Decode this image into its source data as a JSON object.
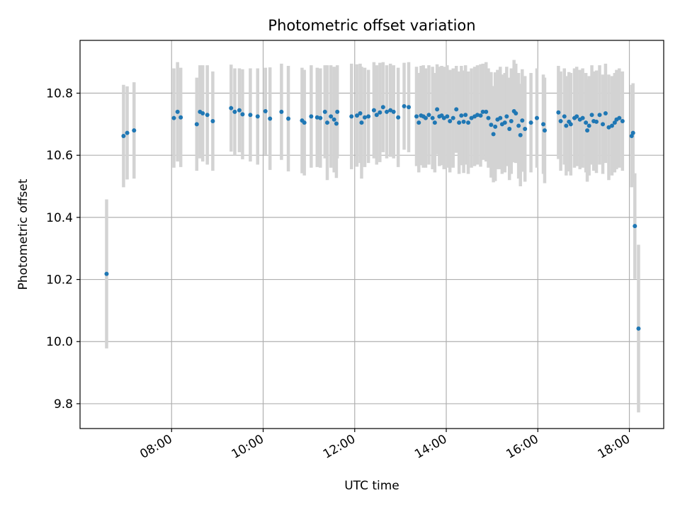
{
  "chart_data": {
    "type": "scatter",
    "title": "Photometric offset variation",
    "xlabel": "UTC time",
    "ylabel": "Photometric offset",
    "x_unit": "hour",
    "xlim": [
      6.0,
      18.75
    ],
    "ylim": [
      9.72,
      10.97
    ],
    "grid": true,
    "x_ticks": [
      {
        "value": 8,
        "label": "08:00"
      },
      {
        "value": 10,
        "label": "10:00"
      },
      {
        "value": 12,
        "label": "12:00"
      },
      {
        "value": 14,
        "label": "14:00"
      },
      {
        "value": 16,
        "label": "16:00"
      },
      {
        "value": 18,
        "label": "18:00"
      }
    ],
    "y_ticks": [
      {
        "value": 9.8,
        "label": "9.8"
      },
      {
        "value": 10.0,
        "label": "10.0"
      },
      {
        "value": 10.2,
        "label": "10.2"
      },
      {
        "value": 10.4,
        "label": "10.4"
      },
      {
        "value": 10.6,
        "label": "10.6"
      },
      {
        "value": 10.8,
        "label": "10.8"
      }
    ],
    "colors": {
      "point": "#1f77b4",
      "errorbar": "#d3d3d3",
      "grid": "#b0b0b0"
    },
    "series": [
      {
        "points": [
          [
            6.58,
            10.218,
            0.24
          ],
          [
            6.95,
            10.662,
            0.165
          ],
          [
            7.03,
            10.672,
            0.15
          ],
          [
            7.18,
            10.68,
            0.155
          ],
          [
            8.05,
            10.72,
            0.16
          ],
          [
            8.13,
            10.74,
            0.16
          ],
          [
            8.2,
            10.722,
            0.16
          ],
          [
            8.55,
            10.7,
            0.15
          ],
          [
            8.62,
            10.74,
            0.15
          ],
          [
            8.68,
            10.735,
            0.155
          ],
          [
            8.78,
            10.73,
            0.16
          ],
          [
            8.9,
            10.71,
            0.16
          ],
          [
            9.3,
            10.752,
            0.14
          ],
          [
            9.38,
            10.74,
            0.14
          ],
          [
            9.48,
            10.745,
            0.135
          ],
          [
            9.55,
            10.732,
            0.145
          ],
          [
            9.72,
            10.73,
            0.15
          ],
          [
            9.88,
            10.725,
            0.155
          ],
          [
            10.05,
            10.742,
            0.14
          ],
          [
            10.15,
            10.718,
            0.165
          ],
          [
            10.4,
            10.74,
            0.155
          ],
          [
            10.55,
            10.718,
            0.17
          ],
          [
            10.85,
            10.712,
            0.17
          ],
          [
            10.9,
            10.705,
            0.17
          ],
          [
            11.05,
            10.725,
            0.165
          ],
          [
            11.18,
            10.722,
            0.16
          ],
          [
            11.25,
            10.72,
            0.16
          ],
          [
            11.35,
            10.74,
            0.15
          ],
          [
            11.4,
            10.705,
            0.185
          ],
          [
            11.48,
            10.725,
            0.165
          ],
          [
            11.55,
            10.715,
            0.17
          ],
          [
            11.62,
            10.74,
            0.15
          ],
          [
            11.6,
            10.702,
            0.175
          ],
          [
            11.93,
            10.725,
            0.17
          ],
          [
            12.05,
            10.728,
            0.165
          ],
          [
            12.12,
            10.735,
            0.16
          ],
          [
            12.15,
            10.705,
            0.18
          ],
          [
            12.22,
            10.722,
            0.16
          ],
          [
            12.3,
            10.725,
            0.15
          ],
          [
            12.42,
            10.745,
            0.155
          ],
          [
            12.48,
            10.73,
            0.16
          ],
          [
            12.55,
            10.738,
            0.16
          ],
          [
            12.62,
            10.755,
            0.145
          ],
          [
            12.7,
            10.74,
            0.15
          ],
          [
            12.78,
            10.745,
            0.15
          ],
          [
            12.85,
            10.74,
            0.15
          ],
          [
            12.95,
            10.722,
            0.16
          ],
          [
            13.08,
            10.758,
            0.14
          ],
          [
            13.18,
            10.755,
            0.145
          ],
          [
            13.35,
            10.725,
            0.16
          ],
          [
            13.4,
            10.705,
            0.16
          ],
          [
            13.45,
            10.728,
            0.16
          ],
          [
            13.5,
            10.725,
            0.165
          ],
          [
            13.55,
            10.72,
            0.16
          ],
          [
            13.62,
            10.73,
            0.16
          ],
          [
            13.7,
            10.72,
            0.165
          ],
          [
            13.75,
            10.705,
            0.16
          ],
          [
            13.8,
            10.748,
            0.145
          ],
          [
            13.85,
            10.725,
            0.16
          ],
          [
            13.9,
            10.728,
            0.16
          ],
          [
            13.95,
            10.72,
            0.165
          ],
          [
            14.02,
            10.725,
            0.165
          ],
          [
            14.08,
            10.71,
            0.165
          ],
          [
            14.15,
            10.72,
            0.16
          ],
          [
            14.22,
            10.748,
            0.14
          ],
          [
            14.28,
            10.705,
            0.165
          ],
          [
            14.33,
            10.728,
            0.16
          ],
          [
            14.38,
            10.708,
            0.165
          ],
          [
            14.42,
            10.73,
            0.16
          ],
          [
            14.48,
            10.705,
            0.165
          ],
          [
            14.55,
            10.72,
            0.16
          ],
          [
            14.62,
            10.725,
            0.16
          ],
          [
            14.68,
            10.73,
            0.16
          ],
          [
            14.75,
            10.728,
            0.165
          ],
          [
            14.8,
            10.74,
            0.155
          ],
          [
            14.87,
            10.74,
            0.16
          ],
          [
            14.92,
            10.72,
            0.16
          ],
          [
            14.98,
            10.698,
            0.17
          ],
          [
            15.03,
            10.668,
            0.155
          ],
          [
            15.07,
            10.692,
            0.175
          ],
          [
            15.12,
            10.715,
            0.16
          ],
          [
            15.18,
            10.72,
            0.165
          ],
          [
            15.22,
            10.7,
            0.16
          ],
          [
            15.28,
            10.705,
            0.16
          ],
          [
            15.32,
            10.725,
            0.16
          ],
          [
            15.38,
            10.685,
            0.165
          ],
          [
            15.42,
            10.71,
            0.17
          ],
          [
            15.48,
            10.742,
            0.165
          ],
          [
            15.52,
            10.735,
            0.16
          ],
          [
            15.58,
            10.695,
            0.17
          ],
          [
            15.62,
            10.665,
            0.165
          ],
          [
            15.66,
            10.712,
            0.165
          ],
          [
            15.72,
            10.685,
            0.17
          ],
          [
            15.85,
            10.705,
            0.16
          ],
          [
            15.98,
            10.72,
            0.16
          ],
          [
            16.12,
            10.7,
            0.16
          ],
          [
            16.15,
            10.68,
            0.17
          ],
          [
            16.45,
            10.738,
            0.15
          ],
          [
            16.5,
            10.71,
            0.16
          ],
          [
            16.58,
            10.725,
            0.155
          ],
          [
            16.62,
            10.695,
            0.16
          ],
          [
            16.68,
            10.708,
            0.16
          ],
          [
            16.72,
            10.7,
            0.165
          ],
          [
            16.8,
            10.72,
            0.16
          ],
          [
            16.85,
            10.725,
            0.16
          ],
          [
            16.92,
            10.715,
            0.16
          ],
          [
            16.98,
            10.72,
            0.16
          ],
          [
            17.05,
            10.705,
            0.16
          ],
          [
            17.08,
            10.68,
            0.165
          ],
          [
            17.12,
            10.695,
            0.16
          ],
          [
            17.18,
            10.73,
            0.16
          ],
          [
            17.22,
            10.71,
            0.16
          ],
          [
            17.28,
            10.708,
            0.165
          ],
          [
            17.35,
            10.73,
            0.16
          ],
          [
            17.42,
            10.7,
            0.16
          ],
          [
            17.48,
            10.735,
            0.16
          ],
          [
            17.55,
            10.69,
            0.17
          ],
          [
            17.62,
            10.695,
            0.16
          ],
          [
            17.68,
            10.705,
            0.16
          ],
          [
            17.72,
            10.715,
            0.16
          ],
          [
            17.78,
            10.72,
            0.16
          ],
          [
            17.85,
            10.71,
            0.16
          ],
          [
            18.05,
            10.662,
            0.165
          ],
          [
            18.08,
            10.672,
            0.16
          ],
          [
            18.12,
            10.372,
            0.17
          ],
          [
            18.2,
            10.042,
            0.27
          ]
        ]
      }
    ]
  }
}
